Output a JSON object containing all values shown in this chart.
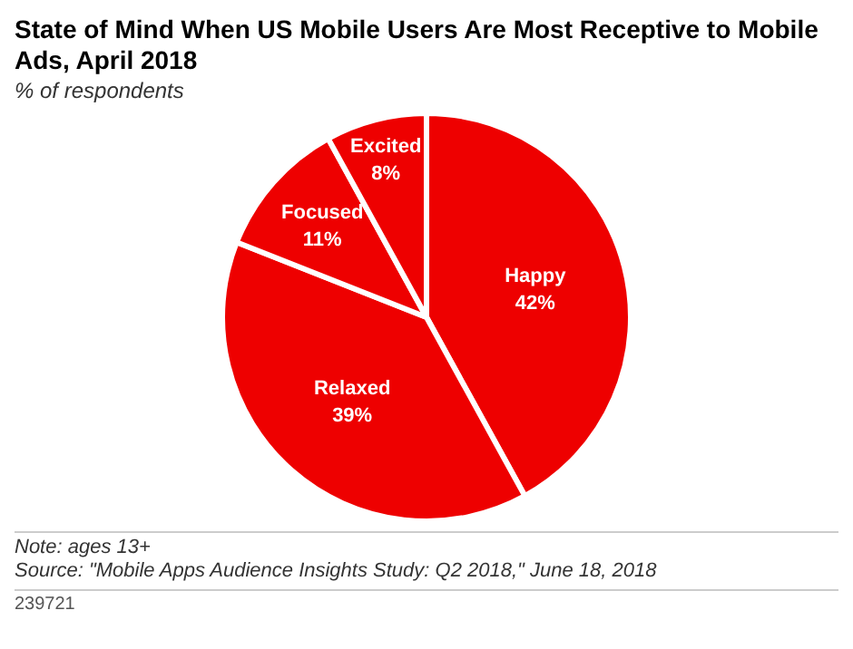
{
  "chart_data": {
    "type": "pie",
    "title": "State of Mind When US Mobile Users Are Most Receptive to Mobile Ads, April 2018",
    "subtitle": "% of respondents",
    "categories": [
      "Happy",
      "Relaxed",
      "Focused",
      "Excited"
    ],
    "values": [
      42,
      39,
      11,
      8
    ],
    "value_labels": [
      "42%",
      "39%",
      "11%",
      "8%"
    ],
    "colors": [
      "#ee0000",
      "#ee0000",
      "#ee0000",
      "#ee0000"
    ],
    "legend": false,
    "annotations": [
      "Note: ages 13+",
      "Source: \"Mobile Apps Audience Insights Study: Q2 2018,\" June 18, 2018",
      "239721"
    ]
  }
}
